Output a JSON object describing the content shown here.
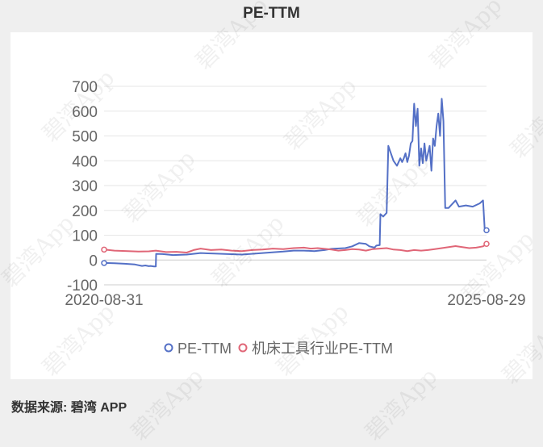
{
  "title": "PE-TTM",
  "source_label": "数据来源: 碧湾 APP",
  "watermark_text": "碧湾App",
  "colors": {
    "pe_ttm": "#5470c6",
    "industry": "#e06677",
    "grid": "#e6e6e6",
    "axis_text": "#666666"
  },
  "chart_data": {
    "type": "line",
    "title": "PE-TTM",
    "x_start_label": "2020-08-31",
    "x_end_label": "2025-08-29",
    "ylim": [
      -100,
      700
    ],
    "yticks": [
      "700",
      "600",
      "500",
      "400",
      "300",
      "200",
      "100",
      "0",
      "-100"
    ],
    "legend_position": "bottom-center",
    "grid": true,
    "series": [
      {
        "name": "PE-TTM",
        "color": "#5470c6",
        "values": [
          [
            0,
            -12
          ],
          [
            0.03,
            -13
          ],
          [
            0.06,
            -15
          ],
          [
            0.09,
            -18
          ],
          [
            0.11,
            -24
          ],
          [
            0.12,
            -22
          ],
          [
            0.13,
            -25
          ],
          [
            0.135,
            -24
          ],
          [
            0.145,
            -26
          ],
          [
            0.15,
            -26
          ],
          [
            0.151,
            25
          ],
          [
            0.17,
            24
          ],
          [
            0.2,
            20
          ],
          [
            0.24,
            22
          ],
          [
            0.28,
            28
          ],
          [
            0.32,
            26
          ],
          [
            0.36,
            24
          ],
          [
            0.4,
            22
          ],
          [
            0.44,
            26
          ],
          [
            0.48,
            30
          ],
          [
            0.52,
            34
          ],
          [
            0.55,
            38
          ],
          [
            0.58,
            38
          ],
          [
            0.61,
            36
          ],
          [
            0.64,
            40
          ],
          [
            0.66,
            45
          ],
          [
            0.7,
            48
          ],
          [
            0.72,
            55
          ],
          [
            0.74,
            68
          ],
          [
            0.76,
            65
          ],
          [
            0.77,
            55
          ],
          [
            0.785,
            50
          ],
          [
            0.79,
            58
          ],
          [
            0.8,
            60
          ],
          [
            0.802,
            185
          ],
          [
            0.81,
            175
          ],
          [
            0.82,
            190
          ],
          [
            0.825,
            460
          ],
          [
            0.83,
            440
          ],
          [
            0.84,
            400
          ],
          [
            0.85,
            380
          ],
          [
            0.86,
            410
          ],
          [
            0.865,
            395
          ],
          [
            0.87,
            410
          ],
          [
            0.875,
            430
          ],
          [
            0.88,
            395
          ],
          [
            0.885,
            420
          ],
          [
            0.89,
            470
          ],
          [
            0.895,
            480
          ],
          [
            0.9,
            630
          ],
          [
            0.905,
            540
          ],
          [
            0.91,
            610
          ],
          [
            0.915,
            380
          ],
          [
            0.92,
            450
          ],
          [
            0.925,
            390
          ],
          [
            0.93,
            470
          ],
          [
            0.935,
            400
          ],
          [
            0.94,
            430
          ],
          [
            0.945,
            460
          ],
          [
            0.95,
            360
          ],
          [
            0.955,
            490
          ],
          [
            0.96,
            460
          ],
          [
            0.965,
            540
          ],
          [
            0.97,
            590
          ],
          [
            0.975,
            500
          ],
          [
            0.98,
            650
          ],
          [
            0.985,
            560
          ],
          [
            0.99,
            210
          ],
          [
            1.0,
            210
          ],
          [
            1.02,
            240
          ],
          [
            1.03,
            215
          ],
          [
            1.05,
            220
          ],
          [
            1.07,
            215
          ],
          [
            1.09,
            228
          ],
          [
            1.1,
            240
          ],
          [
            1.105,
            115
          ],
          [
            1.11,
            120
          ]
        ]
      },
      {
        "name": "机床工具行业PE-TTM",
        "color": "#e06677",
        "values": [
          [
            0,
            42
          ],
          [
            0.03,
            38
          ],
          [
            0.07,
            36
          ],
          [
            0.1,
            34
          ],
          [
            0.13,
            35
          ],
          [
            0.15,
            38
          ],
          [
            0.18,
            32
          ],
          [
            0.21,
            33
          ],
          [
            0.24,
            30
          ],
          [
            0.26,
            40
          ],
          [
            0.28,
            46
          ],
          [
            0.31,
            40
          ],
          [
            0.34,
            42
          ],
          [
            0.37,
            38
          ],
          [
            0.4,
            36
          ],
          [
            0.43,
            40
          ],
          [
            0.46,
            42
          ],
          [
            0.49,
            46
          ],
          [
            0.52,
            44
          ],
          [
            0.55,
            48
          ],
          [
            0.58,
            50
          ],
          [
            0.6,
            46
          ],
          [
            0.62,
            48
          ],
          [
            0.64,
            45
          ],
          [
            0.66,
            42
          ],
          [
            0.68,
            38
          ],
          [
            0.7,
            40
          ],
          [
            0.72,
            44
          ],
          [
            0.74,
            42
          ],
          [
            0.76,
            38
          ],
          [
            0.78,
            44
          ],
          [
            0.8,
            46
          ],
          [
            0.82,
            48
          ],
          [
            0.84,
            42
          ],
          [
            0.86,
            40
          ],
          [
            0.88,
            36
          ],
          [
            0.9,
            40
          ],
          [
            0.92,
            38
          ],
          [
            0.94,
            40
          ],
          [
            0.96,
            44
          ],
          [
            0.98,
            48
          ],
          [
            1.0,
            52
          ],
          [
            1.02,
            56
          ],
          [
            1.04,
            52
          ],
          [
            1.06,
            48
          ],
          [
            1.08,
            50
          ],
          [
            1.1,
            55
          ],
          [
            1.11,
            65
          ]
        ]
      }
    ]
  }
}
